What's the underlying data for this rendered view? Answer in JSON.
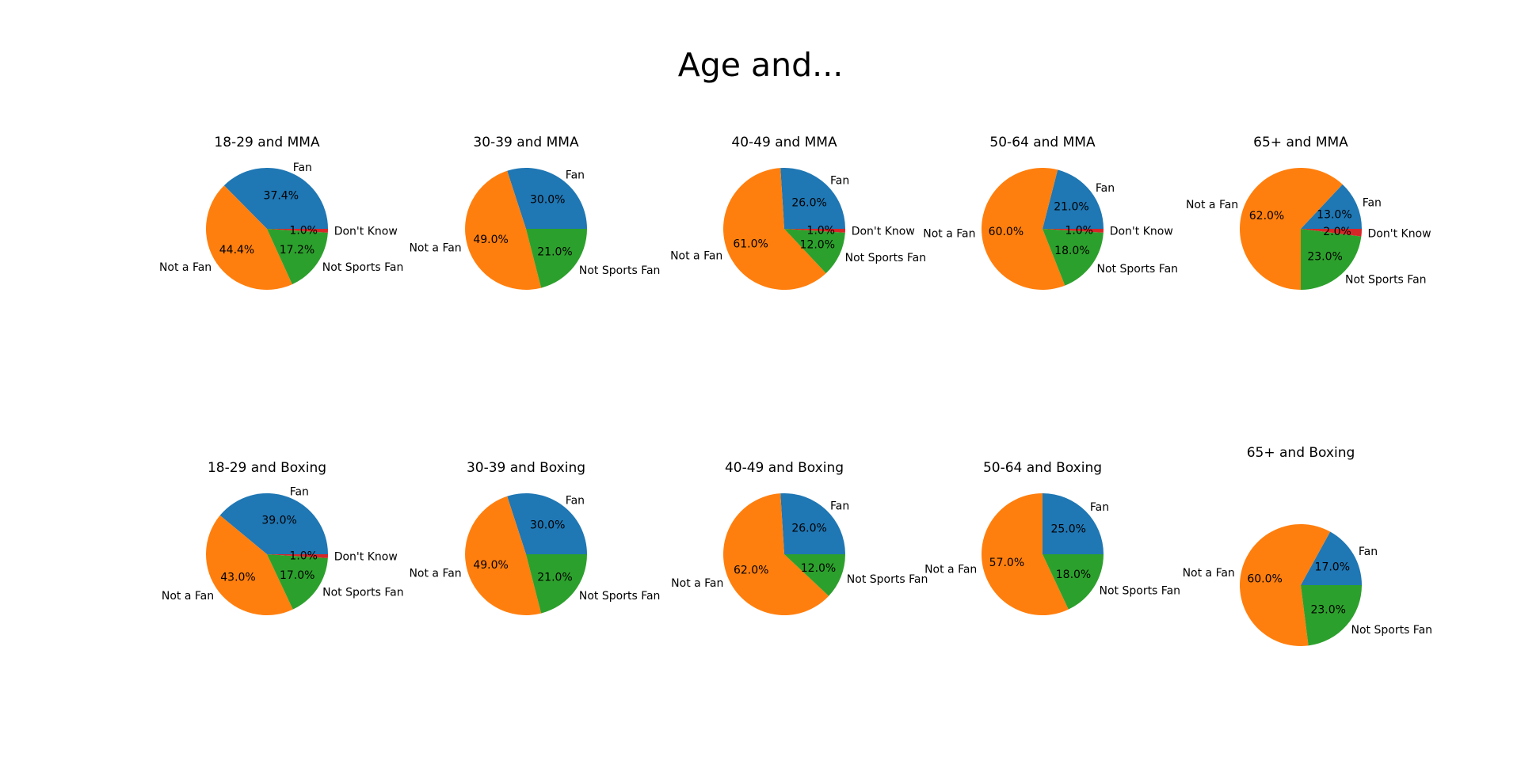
{
  "figure": {
    "title": "Age and..."
  },
  "colors": {
    "Fan": "#1f77b4",
    "Not a Fan": "#ff7f0e",
    "Not Sports Fan": "#2ca02c",
    "Don't Know": "#d62728"
  },
  "chart_data": [
    {
      "type": "pie",
      "title": "18-29 and MMA",
      "slices": [
        {
          "label": "Fan",
          "value": 37.4
        },
        {
          "label": "Not a Fan",
          "value": 44.4
        },
        {
          "label": "Not Sports Fan",
          "value": 17.2
        },
        {
          "label": "Don't Know",
          "value": 1.0
        }
      ],
      "pct_labels": [
        "37.4%",
        "44.4%",
        "17.2%",
        "1.0%"
      ]
    },
    {
      "type": "pie",
      "title": "30-39 and MMA",
      "slices": [
        {
          "label": "Fan",
          "value": 30.0
        },
        {
          "label": "Not a Fan",
          "value": 49.0
        },
        {
          "label": "Not Sports Fan",
          "value": 21.0
        }
      ],
      "pct_labels": [
        "30.0%",
        "49.0%",
        "21.0%"
      ]
    },
    {
      "type": "pie",
      "title": "40-49 and MMA",
      "slices": [
        {
          "label": "Fan",
          "value": 26.0
        },
        {
          "label": "Not a Fan",
          "value": 61.0
        },
        {
          "label": "Not Sports Fan",
          "value": 12.0
        },
        {
          "label": "Don't Know",
          "value": 1.0
        }
      ],
      "pct_labels": [
        "26.0%",
        "61.0%",
        "12.0%",
        "1.0%"
      ]
    },
    {
      "type": "pie",
      "title": "50-64 and MMA",
      "slices": [
        {
          "label": "Fan",
          "value": 21.0
        },
        {
          "label": "Not a Fan",
          "value": 60.0
        },
        {
          "label": "Not Sports Fan",
          "value": 18.0
        },
        {
          "label": "Don't Know",
          "value": 1.0
        }
      ],
      "pct_labels": [
        "21.0%",
        "60.0%",
        "18.0%",
        "1.0%"
      ]
    },
    {
      "type": "pie",
      "title": "65+ and MMA",
      "slices": [
        {
          "label": "Fan",
          "value": 13.0
        },
        {
          "label": "Not a Fan",
          "value": 62.0
        },
        {
          "label": "Not Sports Fan",
          "value": 23.0
        },
        {
          "label": "Don't Know",
          "value": 2.0
        }
      ],
      "pct_labels": [
        "13.0%",
        "62.0%",
        "23.0%",
        "2.0%"
      ]
    },
    {
      "type": "pie",
      "title": "18-29 and Boxing",
      "slices": [
        {
          "label": "Fan",
          "value": 39.0
        },
        {
          "label": "Not a Fan",
          "value": 43.0
        },
        {
          "label": "Not Sports Fan",
          "value": 17.0
        },
        {
          "label": "Don't Know",
          "value": 1.0
        }
      ],
      "pct_labels": [
        "39.0%",
        "43.0%",
        "17.0%",
        "1.0%"
      ]
    },
    {
      "type": "pie",
      "title": "30-39 and Boxing",
      "slices": [
        {
          "label": "Fan",
          "value": 30.0
        },
        {
          "label": "Not a Fan",
          "value": 49.0
        },
        {
          "label": "Not Sports Fan",
          "value": 21.0
        }
      ],
      "pct_labels": [
        "30.0%",
        "49.0%",
        "21.0%"
      ]
    },
    {
      "type": "pie",
      "title": "40-49 and Boxing",
      "slices": [
        {
          "label": "Fan",
          "value": 26.0
        },
        {
          "label": "Not a Fan",
          "value": 62.0
        },
        {
          "label": "Not Sports Fan",
          "value": 12.0
        }
      ],
      "pct_labels": [
        "26.0%",
        "62.0%",
        "12.0%"
      ]
    },
    {
      "type": "pie",
      "title": "50-64 and Boxing",
      "slices": [
        {
          "label": "Fan",
          "value": 25.0
        },
        {
          "label": "Not a Fan",
          "value": 57.0
        },
        {
          "label": "Not Sports Fan",
          "value": 18.0
        }
      ],
      "pct_labels": [
        "25.0%",
        "57.0%",
        "18.0%"
      ]
    },
    {
      "type": "pie",
      "title": "65+ and Boxing",
      "slices": [
        {
          "label": "Fan",
          "value": 17.0
        },
        {
          "label": "Not a Fan",
          "value": 60.0
        },
        {
          "label": "Not Sports Fan",
          "value": 23.0
        }
      ],
      "pct_labels": [
        "17.0%",
        "60.0%",
        "23.0%"
      ]
    }
  ]
}
